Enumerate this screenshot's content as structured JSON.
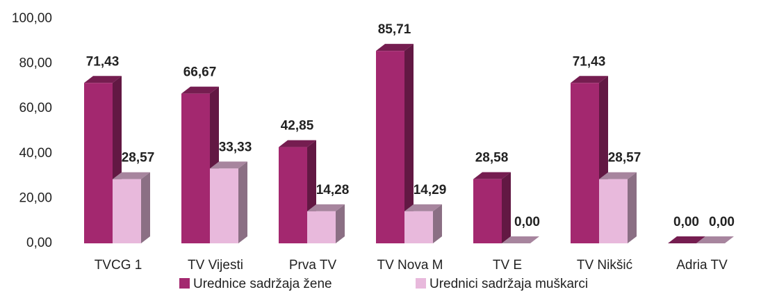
{
  "chart_data": {
    "type": "bar3d",
    "categories": [
      "TVCG 1",
      "TV Vijesti",
      "Prva TV",
      "TV Nova M",
      "TV E",
      "TV Nikšić",
      "Adria TV"
    ],
    "series": [
      {
        "name": "Urednice sadržaja žene",
        "color": "#a3286f",
        "values": [
          71.43,
          66.67,
          42.85,
          85.71,
          28.58,
          71.43,
          0
        ],
        "value_labels": [
          "71,43",
          "66,67",
          "42,85",
          "85,71",
          "28,58",
          "71,43",
          "0,00"
        ]
      },
      {
        "name": "Urednici sadržaja muškarci",
        "color": "#e8b9dc",
        "values": [
          28.57,
          33.33,
          14.28,
          14.29,
          0,
          28.57,
          0
        ],
        "value_labels": [
          "28,57",
          "33,33",
          "14,28",
          "14,29",
          "0,00",
          "28,57",
          "0,00"
        ]
      }
    ],
    "ylim": [
      0,
      100
    ],
    "yticks": [
      {
        "value": 0,
        "label": "0,00"
      },
      {
        "value": 20,
        "label": "20,00"
      },
      {
        "value": 40,
        "label": "40,00"
      },
      {
        "value": 60,
        "label": "60,00"
      },
      {
        "value": 80,
        "label": "80,00"
      },
      {
        "value": 100,
        "label": "100,00"
      }
    ],
    "legend": "bottom"
  }
}
